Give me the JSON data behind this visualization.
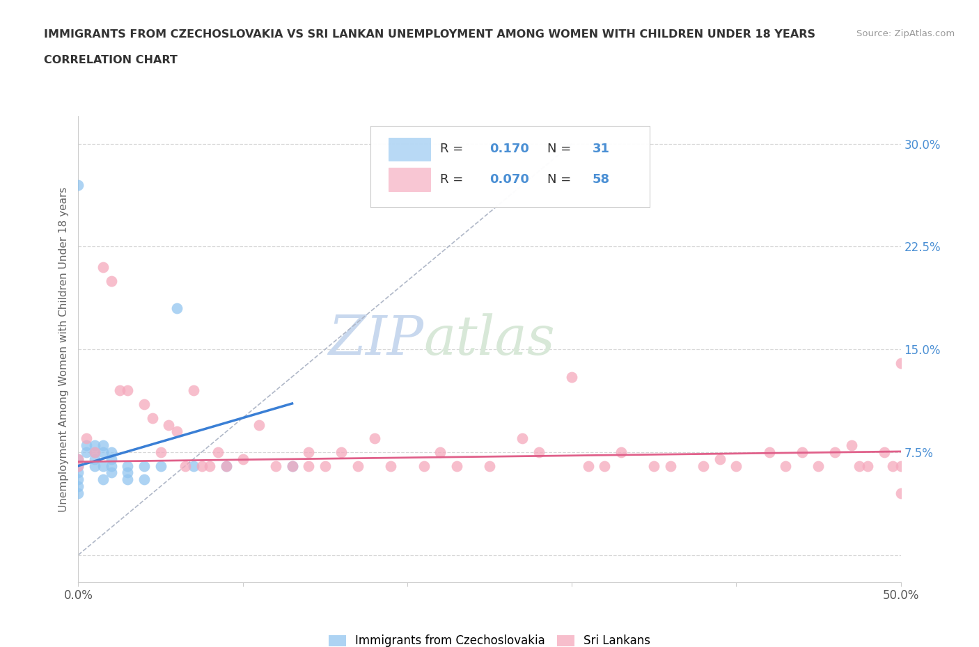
{
  "title_line1": "IMMIGRANTS FROM CZECHOSLOVAKIA VS SRI LANKAN UNEMPLOYMENT AMONG WOMEN WITH CHILDREN UNDER 18 YEARS",
  "title_line2": "CORRELATION CHART",
  "source": "Source: ZipAtlas.com",
  "ylabel": "Unemployment Among Women with Children Under 18 years",
  "xlim": [
    0.0,
    0.5
  ],
  "ylim": [
    -0.02,
    0.32
  ],
  "R_czech": 0.17,
  "N_czech": 31,
  "R_sri": 0.07,
  "N_sri": 58,
  "color_czech": "#92c5f0",
  "color_sri": "#f5a8bc",
  "trendline_color_czech": "#3a7fd5",
  "trendline_color_sri": "#e0608a",
  "watermark_ZIP": "ZIP",
  "watermark_atlas": "atlas",
  "background_color": "#ffffff",
  "grid_color": "#d8d8d8",
  "czech_x": [
    0.0,
    0.0,
    0.0,
    0.0,
    0.0,
    0.0,
    0.0,
    0.005,
    0.005,
    0.01,
    0.01,
    0.01,
    0.01,
    0.015,
    0.015,
    0.015,
    0.015,
    0.02,
    0.02,
    0.02,
    0.02,
    0.03,
    0.03,
    0.03,
    0.04,
    0.04,
    0.05,
    0.06,
    0.07,
    0.09,
    0.13
  ],
  "czech_y": [
    0.27,
    0.07,
    0.065,
    0.06,
    0.055,
    0.05,
    0.045,
    0.08,
    0.075,
    0.08,
    0.075,
    0.07,
    0.065,
    0.08,
    0.075,
    0.065,
    0.055,
    0.075,
    0.07,
    0.065,
    0.06,
    0.065,
    0.06,
    0.055,
    0.065,
    0.055,
    0.065,
    0.18,
    0.065,
    0.065,
    0.065
  ],
  "sri_x": [
    0.0,
    0.0,
    0.005,
    0.01,
    0.015,
    0.02,
    0.025,
    0.03,
    0.04,
    0.045,
    0.05,
    0.055,
    0.06,
    0.065,
    0.07,
    0.075,
    0.08,
    0.085,
    0.09,
    0.1,
    0.11,
    0.12,
    0.13,
    0.14,
    0.14,
    0.15,
    0.16,
    0.17,
    0.18,
    0.19,
    0.21,
    0.22,
    0.23,
    0.25,
    0.27,
    0.28,
    0.3,
    0.31,
    0.32,
    0.33,
    0.35,
    0.36,
    0.38,
    0.39,
    0.4,
    0.42,
    0.43,
    0.44,
    0.45,
    0.46,
    0.47,
    0.475,
    0.48,
    0.49,
    0.495,
    0.5,
    0.5,
    0.5
  ],
  "sri_y": [
    0.07,
    0.065,
    0.085,
    0.075,
    0.21,
    0.2,
    0.12,
    0.12,
    0.11,
    0.1,
    0.075,
    0.095,
    0.09,
    0.065,
    0.12,
    0.065,
    0.065,
    0.075,
    0.065,
    0.07,
    0.095,
    0.065,
    0.065,
    0.065,
    0.075,
    0.065,
    0.075,
    0.065,
    0.085,
    0.065,
    0.065,
    0.075,
    0.065,
    0.065,
    0.085,
    0.075,
    0.13,
    0.065,
    0.065,
    0.075,
    0.065,
    0.065,
    0.065,
    0.07,
    0.065,
    0.075,
    0.065,
    0.075,
    0.065,
    0.075,
    0.08,
    0.065,
    0.065,
    0.075,
    0.065,
    0.14,
    0.065,
    0.045
  ]
}
